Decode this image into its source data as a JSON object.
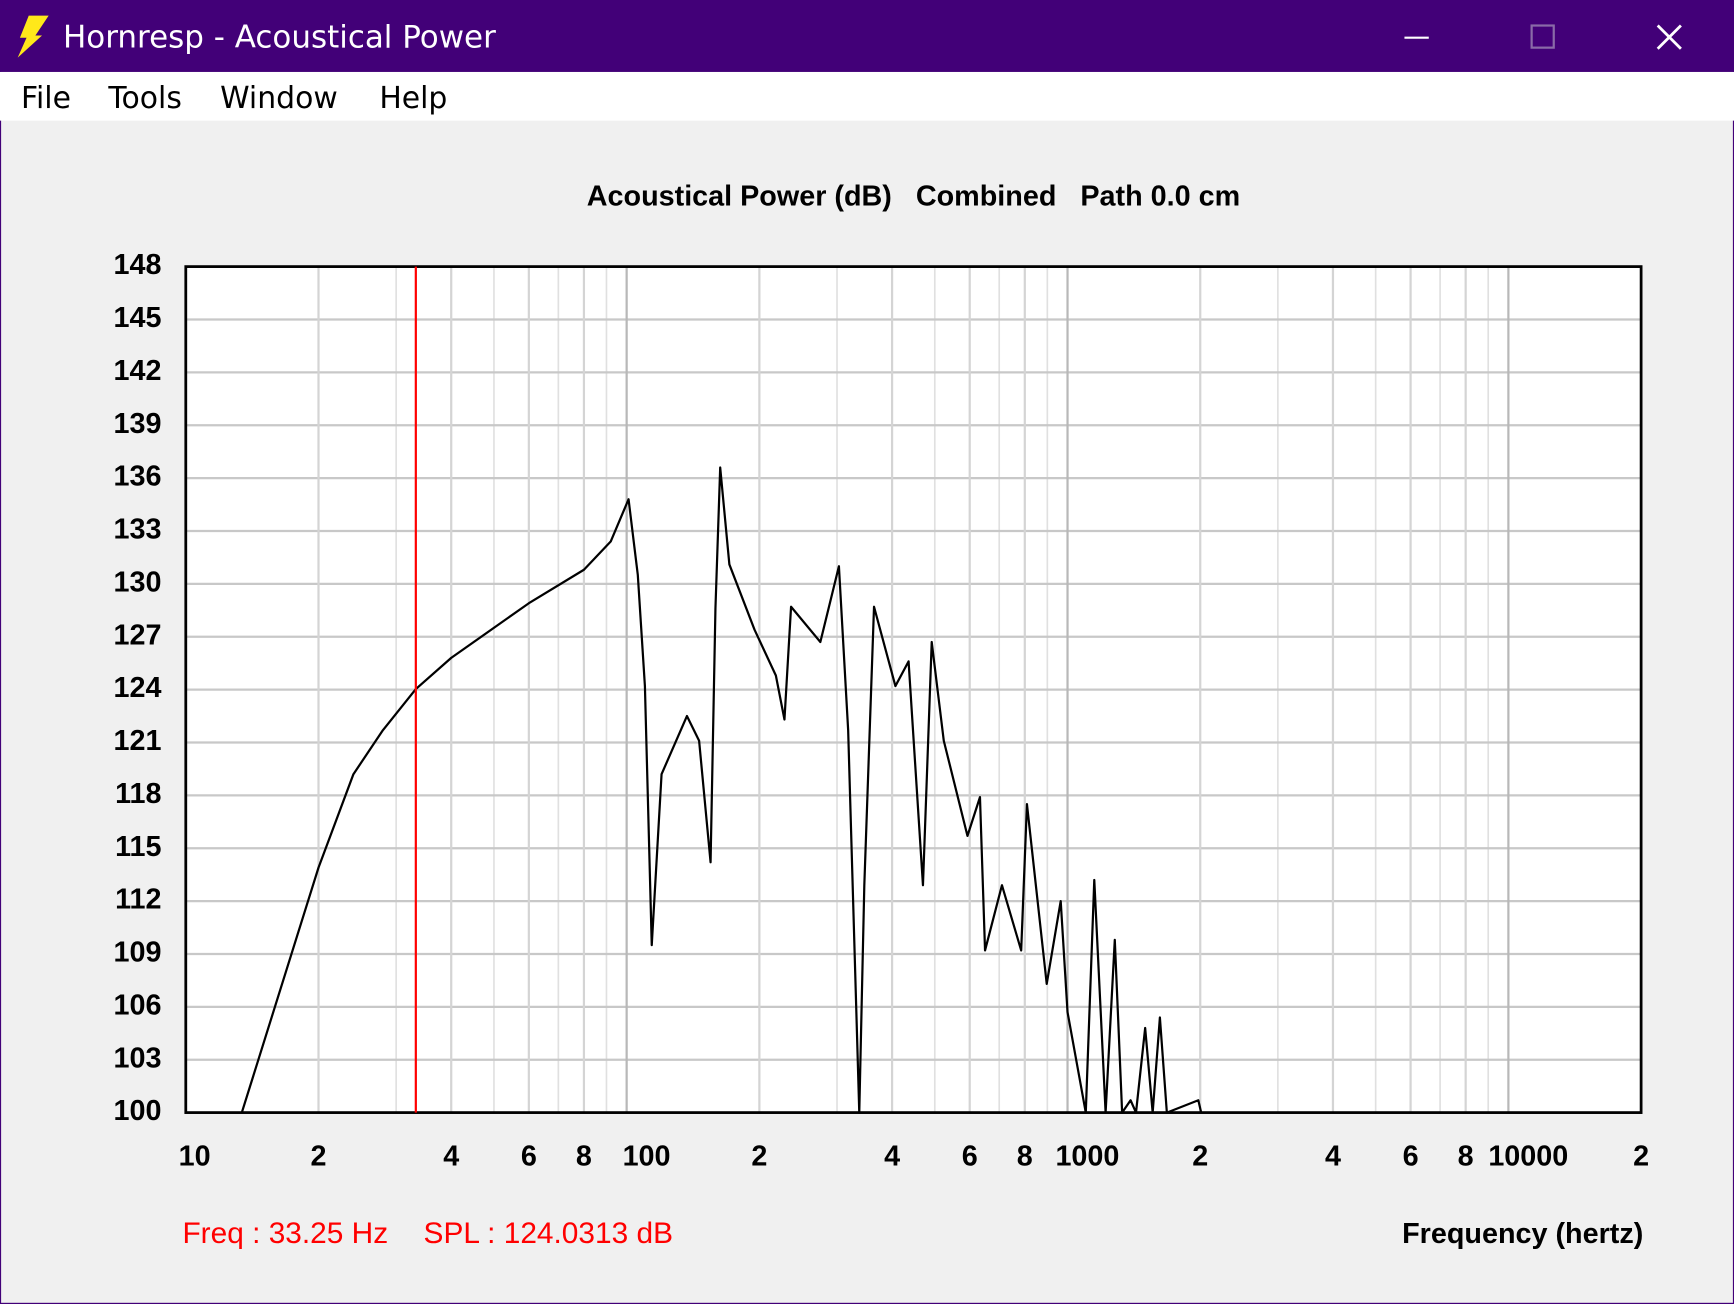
{
  "window": {
    "title": "Hornresp - Acoustical Power"
  },
  "menu": [
    "File",
    "Tools",
    "Window",
    "Help"
  ],
  "chart_data": {
    "type": "line",
    "title": "Acoustical Power (dB)   Combined   Path 0.0 cm",
    "x_label": "Frequency (hertz)",
    "log_x": true,
    "grid": true,
    "color": "#000000",
    "xlim": [
      10,
      20000
    ],
    "ylim": [
      100,
      148
    ],
    "yticks": [
      100,
      103,
      106,
      109,
      112,
      115,
      118,
      121,
      124,
      127,
      130,
      133,
      136,
      139,
      142,
      145,
      148
    ],
    "xticks": [
      10,
      {
        "value": 20,
        "label": "2"
      },
      {
        "value": 40,
        "label": "4"
      },
      {
        "value": 60,
        "label": "6"
      },
      {
        "value": 80,
        "label": "8"
      },
      100,
      {
        "value": 200,
        "label": "2"
      },
      {
        "value": 400,
        "label": "4"
      },
      {
        "value": 600,
        "label": "6"
      },
      {
        "value": 800,
        "label": "8"
      },
      1000,
      {
        "value": 2000,
        "label": "2"
      },
      {
        "value": 4000,
        "label": "4"
      },
      {
        "value": 6000,
        "label": "6"
      },
      {
        "value": 8000,
        "label": "8"
      },
      10000,
      {
        "value": 20000,
        "label": "2"
      }
    ],
    "xminor_ticks": [
      30,
      50,
      70,
      90,
      300,
      500,
      700,
      900,
      3000,
      5000,
      7000,
      9000
    ],
    "x": [
      13.4,
      20,
      24,
      28,
      33.25,
      40,
      60,
      80,
      92,
      101,
      106,
      110,
      114,
      120,
      137,
      146,
      155,
      159,
      163,
      171,
      195,
      218,
      228,
      236,
      275,
      303,
      318,
      337,
      346,
      364,
      407,
      436,
      470,
      492,
      524,
      593,
      633,
      650,
      710,
      785,
      809,
      897,
      965,
      1000,
      1100,
      1150,
      1220,
      1280,
      1330,
      1390,
      1430,
      1500,
      1560,
      1620,
      1680,
      1980,
      2010
    ],
    "values": [
      100,
      113.9,
      119.2,
      121.7,
      124.03,
      125.8,
      128.9,
      130.8,
      132.4,
      134.8,
      130.5,
      124.2,
      109.5,
      119.2,
      122.5,
      121.1,
      114.2,
      128.6,
      136.6,
      131.1,
      127.4,
      124.8,
      122.3,
      128.7,
      126.7,
      131.0,
      121.7,
      100,
      112.9,
      128.7,
      124.2,
      125.6,
      112.9,
      126.7,
      121.1,
      115.7,
      117.9,
      109.2,
      112.9,
      109.2,
      117.5,
      107.3,
      112.0,
      105.7,
      100,
      113.2,
      100,
      109.8,
      100,
      100.7,
      100,
      104.8,
      100,
      105.4,
      100,
      100.7,
      100
    ],
    "cursor": {
      "x": 33.25,
      "y": 124.0313,
      "freq_label": "Freq : 33.25 Hz",
      "spl_label": "SPL : 124.0313 dB",
      "color": "#ff0000"
    }
  }
}
